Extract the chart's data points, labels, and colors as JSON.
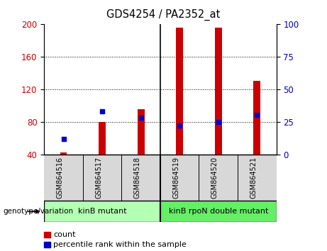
{
  "title": "GDS4254 / PA2352_at",
  "categories": [
    "GSM864516",
    "GSM864517",
    "GSM864518",
    "GSM864519",
    "GSM864520",
    "GSM864521"
  ],
  "count_values": [
    42,
    80,
    95,
    195,
    195,
    130
  ],
  "percentile_values": [
    12,
    33,
    28,
    22,
    25,
    30
  ],
  "ylim_left": [
    40,
    200
  ],
  "ylim_right": [
    0,
    100
  ],
  "left_ticks": [
    40,
    80,
    120,
    160,
    200
  ],
  "right_ticks": [
    0,
    25,
    50,
    75,
    100
  ],
  "bar_color": "#cc0000",
  "percentile_color": "#0000cc",
  "group1_label": "kinB mutant",
  "group2_label": "kinB rpoN double mutant",
  "group1_color": "#b3ffb3",
  "group2_color": "#66ee66",
  "genotype_label": "genotype/variation",
  "legend_count": "count",
  "legend_percentile": "percentile rank within the sample",
  "bar_width": 0.18,
  "xlabel_color": "#cc0000",
  "ylabel_right_color": "#0000cc",
  "plot_bg": "#d8d8d8",
  "fig_bg": "#ffffff"
}
